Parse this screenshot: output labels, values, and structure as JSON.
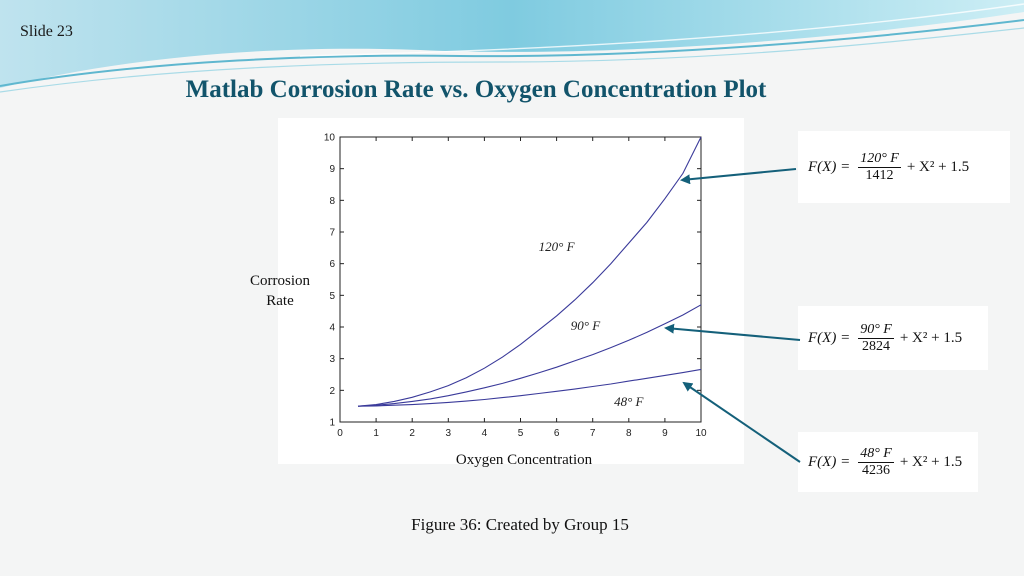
{
  "slide": {
    "number_label": "Slide 23",
    "title": "Matlab Corrosion Rate vs. Oxygen Concentration Plot",
    "ylabel_line1": "Corrosion",
    "ylabel_line2": "Rate",
    "xlabel": "Oxygen Concentration",
    "caption": "Figure 36: Created by Group 15"
  },
  "colors": {
    "title": "#12546b",
    "curve": "#3a3a9a",
    "arrow": "#14607a"
  },
  "formulas": [
    {
      "lhs": "F(X) =",
      "numerator": "120° F",
      "denominator": "1412",
      "rhs": "+ X² + 1.5"
    },
    {
      "lhs": "F(X) =",
      "numerator": "90° F",
      "denominator": "2824",
      "rhs": "+ X² + 1.5"
    },
    {
      "lhs": "F(X) =",
      "numerator": "48° F",
      "denominator": "4236",
      "rhs": "+ X² + 1.5"
    }
  ],
  "chart_data": {
    "type": "line",
    "title": "",
    "xlabel": "Oxygen Concentration",
    "ylabel": "Corrosion Rate",
    "xlim": [
      0,
      10
    ],
    "ylim": [
      1,
      10
    ],
    "xticks": [
      0,
      1,
      2,
      3,
      4,
      5,
      6,
      7,
      8,
      9,
      10
    ],
    "yticks": [
      1,
      2,
      3,
      4,
      5,
      6,
      7,
      8,
      9,
      10
    ],
    "grid": false,
    "x": [
      0.5,
      1,
      1.5,
      2,
      2.5,
      3,
      3.5,
      4,
      4.5,
      5,
      5.5,
      6,
      6.5,
      7,
      7.5,
      8,
      8.5,
      9,
      9.5,
      10
    ],
    "series": [
      {
        "name": "120° F",
        "label_at": [
          6,
          6.4
        ],
        "values": [
          1.5,
          1.55,
          1.65,
          1.78,
          1.95,
          2.15,
          2.4,
          2.7,
          3.05,
          3.45,
          3.9,
          4.35,
          4.85,
          5.4,
          6.0,
          6.65,
          7.3,
          8.05,
          8.85,
          10.0
        ]
      },
      {
        "name": "90° F",
        "label_at": [
          6.8,
          3.9
        ],
        "values": [
          1.5,
          1.53,
          1.58,
          1.65,
          1.73,
          1.83,
          1.95,
          2.08,
          2.22,
          2.38,
          2.55,
          2.73,
          2.93,
          3.13,
          3.35,
          3.58,
          3.83,
          4.1,
          4.38,
          4.7
        ]
      },
      {
        "name": "48° F",
        "label_at": [
          8,
          1.5
        ],
        "values": [
          1.5,
          1.51,
          1.53,
          1.55,
          1.58,
          1.62,
          1.66,
          1.71,
          1.77,
          1.83,
          1.9,
          1.97,
          2.04,
          2.12,
          2.2,
          2.29,
          2.38,
          2.47,
          2.56,
          2.66
        ]
      }
    ]
  }
}
